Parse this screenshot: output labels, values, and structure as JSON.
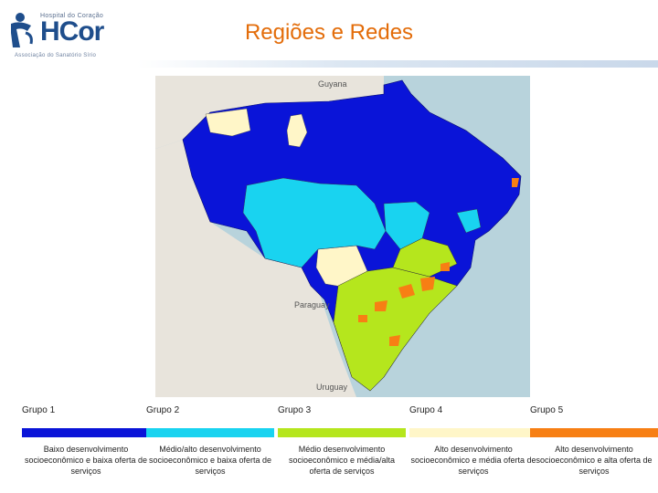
{
  "header": {
    "logo_top": "Hospital do Coração",
    "logo_main": "HCor",
    "logo_sub": "Associação do Sanatório Sírio",
    "title": "Regiões e Redes"
  },
  "map": {
    "labels": [
      {
        "name": "guyana",
        "text": "Guyana"
      },
      {
        "name": "paraguay",
        "text": "Paraguay"
      },
      {
        "name": "uruguay",
        "text": "Uruguay"
      }
    ],
    "colors": {
      "ocean": "#b8d3dc",
      "neighbor_land": "#e8e4dc",
      "grupo1": "#0a14d8",
      "grupo2": "#19d3f0",
      "grupo3": "#b5e61d",
      "grupo4": "#fff6c8",
      "grupo5": "#f77f14"
    }
  },
  "legend": {
    "groups": [
      {
        "label": "Grupo 1",
        "color": "#0a14d8",
        "description": "Baixo desenvolvimento socioeconômico e baixa oferta de serviços"
      },
      {
        "label": "Grupo 2",
        "color": "#19d3f0",
        "description": "Médio/alto desenvolvimento socioeconômico e baixa oferta de serviços"
      },
      {
        "label": "Grupo 3",
        "color": "#b5e61d",
        "description": "Médio desenvolvimento socioeconômico e média/alta oferta de serviços"
      },
      {
        "label": "Grupo 4",
        "color": "#fff6c8",
        "description": "Alto desenvolvimento socioeconômico e média oferta de serviços"
      },
      {
        "label": "Grupo 5",
        "color": "#f77f14",
        "description": "Alto desenvolvimento socioeconômico e alta oferta de serviços"
      }
    ]
  }
}
